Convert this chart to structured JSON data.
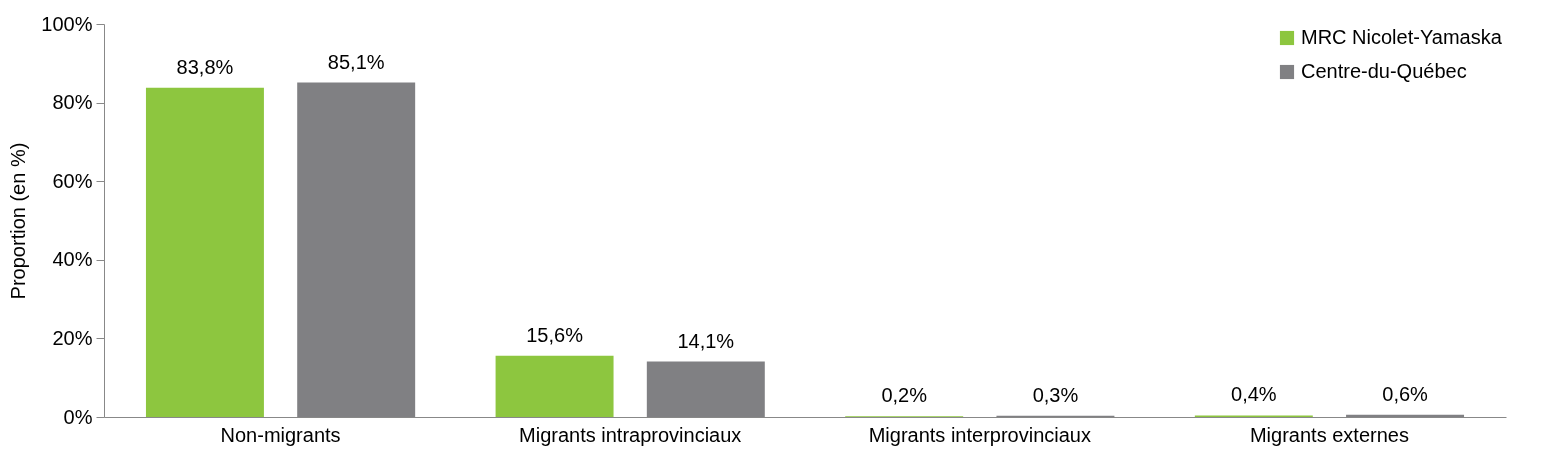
{
  "chart_data": {
    "type": "bar",
    "ylabel": "Proportion (en %)",
    "categories": [
      "Non-migrants",
      "Migrants intraprovinciaux",
      "Migrants interprovinciaux",
      "Migrants externes"
    ],
    "series": [
      {
        "name": "MRC Nicolet-Yamaska",
        "color": "#8dc63f",
        "values": [
          83.8,
          15.6,
          0.2,
          0.4
        ],
        "value_labels": [
          "83,8%",
          "15,6%",
          "0,2%",
          "0,4%"
        ]
      },
      {
        "name": "Centre-du-Québec",
        "color": "#808083",
        "values": [
          85.1,
          14.1,
          0.3,
          0.6
        ],
        "value_labels": [
          "85,1%",
          "14,1%",
          "0,3%",
          "0,6%"
        ]
      }
    ],
    "ylim": [
      0,
      100
    ],
    "yticks": [
      {
        "value": 0,
        "label": "0%"
      },
      {
        "value": 20,
        "label": "20%"
      },
      {
        "value": 40,
        "label": "40%"
      },
      {
        "value": 60,
        "label": "60%"
      },
      {
        "value": 80,
        "label": "80%"
      },
      {
        "value": 100,
        "label": "100%"
      }
    ],
    "legend": "top right",
    "grid": false
  }
}
